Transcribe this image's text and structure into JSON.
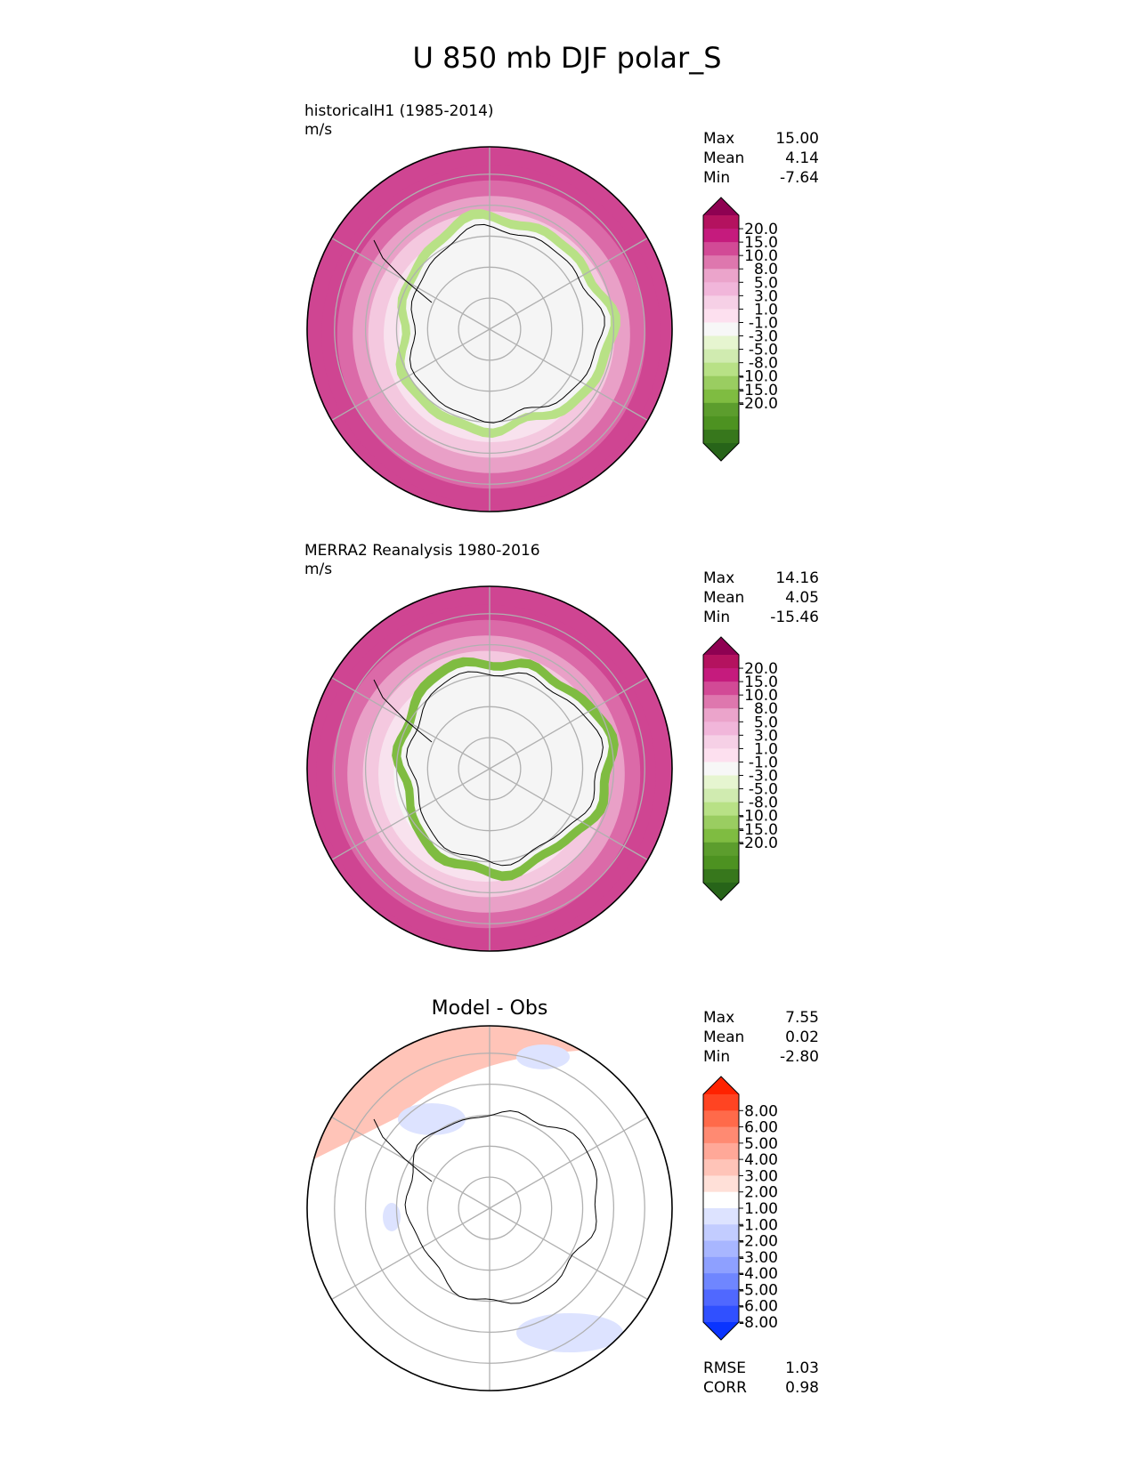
{
  "figure": {
    "title": "U 850 mb DJF polar_S"
  },
  "chart_data": [
    {
      "type": "heatmap",
      "projection": "south-polar-stereographic",
      "title": "historicalH1 (1985-2014)",
      "units": "m/s",
      "stats": [
        {
          "label": "Max",
          "value": "15.00"
        },
        {
          "label": "Mean",
          "value": "4.14"
        },
        {
          "label": "Min",
          "value": "-7.64"
        }
      ],
      "colorbar": {
        "ticks": [
          "20.0",
          "15.0",
          "10.0",
          "8.0",
          "5.0",
          "3.0",
          "1.0",
          "-1.0",
          "-3.0",
          "-5.0",
          "-8.0",
          "-10.0",
          "-15.0",
          "-20.0"
        ],
        "colors": [
          "#8e0152",
          "#b4125f",
          "#c51b7d",
          "#d24a96",
          "#de77ae",
          "#eba4cb",
          "#f1b6da",
          "#f6d0e6",
          "#fde0ef",
          "#f7f7f7",
          "#e6f5d0",
          "#d0ebb0",
          "#b8e186",
          "#9acd61",
          "#7fbc41",
          "#5c9d2d",
          "#4d9221",
          "#37771c",
          "#276419"
        ],
        "extend": "both"
      },
      "pattern": {
        "outer_ring": "#cf4592",
        "gradient": [
          "#cf4592",
          "#db6aa8",
          "#e9a0c7",
          "#f4c8df",
          "#f8e2ee",
          "#f5f5f5"
        ],
        "interior": "#f5f5f5",
        "coast_band": "#b8e186"
      }
    },
    {
      "type": "heatmap",
      "projection": "south-polar-stereographic",
      "title": "MERRA2 Reanalysis 1980-2016",
      "units": "m/s",
      "stats": [
        {
          "label": "Max",
          "value": "14.16"
        },
        {
          "label": "Mean",
          "value": "4.05"
        },
        {
          "label": "Min",
          "value": "-15.46"
        }
      ],
      "colorbar": {
        "ticks": [
          "20.0",
          "15.0",
          "10.0",
          "8.0",
          "5.0",
          "3.0",
          "1.0",
          "-1.0",
          "-3.0",
          "-5.0",
          "-8.0",
          "-10.0",
          "-15.0",
          "-20.0"
        ],
        "colors": [
          "#8e0152",
          "#b4125f",
          "#c51b7d",
          "#d24a96",
          "#de77ae",
          "#eba4cb",
          "#f1b6da",
          "#f6d0e6",
          "#fde0ef",
          "#f7f7f7",
          "#e6f5d0",
          "#d0ebb0",
          "#b8e186",
          "#9acd61",
          "#7fbc41",
          "#5c9d2d",
          "#4d9221",
          "#37771c",
          "#276419"
        ],
        "extend": "both"
      },
      "pattern": {
        "outer_ring": "#cf4592",
        "gradient": [
          "#cf4592",
          "#db6aa8",
          "#e9a0c7",
          "#f4c8df",
          "#f8e2ee",
          "#f5f5f5"
        ],
        "interior": "#f5f5f5",
        "coast_band": "#7fbc41"
      }
    },
    {
      "type": "heatmap",
      "projection": "south-polar-stereographic",
      "title": "Model - Obs",
      "units": "",
      "stats": [
        {
          "label": "Max",
          "value": "7.55"
        },
        {
          "label": "Mean",
          "value": "0.02"
        },
        {
          "label": "Min",
          "value": "-2.80"
        }
      ],
      "metrics": [
        {
          "label": "RMSE",
          "value": "1.03"
        },
        {
          "label": "CORR",
          "value": "0.98"
        }
      ],
      "colorbar": {
        "ticks": [
          "8.00",
          "6.00",
          "5.00",
          "4.00",
          "3.00",
          "2.00",
          "1.00",
          "-1.00",
          "-2.00",
          "-3.00",
          "-4.00",
          "-5.00",
          "-6.00",
          "-8.00"
        ],
        "colors": [
          "#ff2200",
          "#ff4422",
          "#ff6a4a",
          "#ff8a72",
          "#ffa898",
          "#ffc4b8",
          "#ffe0d8",
          "#ffffff",
          "#dde3ff",
          "#c2ccff",
          "#a8b6ff",
          "#8ea0ff",
          "#6f86ff",
          "#5068ff",
          "#3050ff",
          "#0a34ff"
        ],
        "extend": "both"
      },
      "pattern": {
        "outer_ring": "#ffffff",
        "positive": "#ffc4b8",
        "negative": "#dde3ff",
        "interior": "#ffffff"
      }
    }
  ]
}
